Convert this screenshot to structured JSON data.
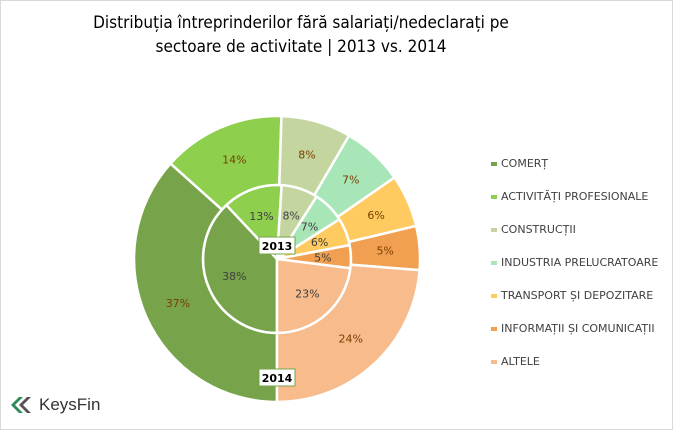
{
  "chart_data": {
    "type": "donut",
    "title": [
      "Distribuția întreprinderilor fără salariați/nedeclarați pe",
      "sectoare de activitate | 2013 vs. 2014"
    ],
    "categories": [
      "COMERȚ",
      "ACTIVITĂȚI PROFESIONALE",
      "CONSTRUCȚII",
      "INDUSTRIA PRELUCRATOARE",
      "TRANSPORT ȘI DEPOZITARE",
      "INFORMAȚII ȘI COMUNICAȚII",
      "ALTELE"
    ],
    "colors": [
      "#77a44a",
      "#8ecf4e",
      "#c4d59f",
      "#a8e6b8",
      "#ffca5f",
      "#f0a050",
      "#f7bb8c"
    ],
    "series": [
      {
        "name": "2013",
        "ring": "inner",
        "values": [
          38,
          13,
          8,
          7,
          6,
          5,
          23
        ]
      },
      {
        "name": "2014",
        "ring": "outer",
        "values": [
          37,
          14,
          8,
          7,
          6,
          5,
          24
        ]
      }
    ],
    "legend": "right",
    "unit": "%"
  },
  "logo": {
    "text": "KeysFin"
  }
}
